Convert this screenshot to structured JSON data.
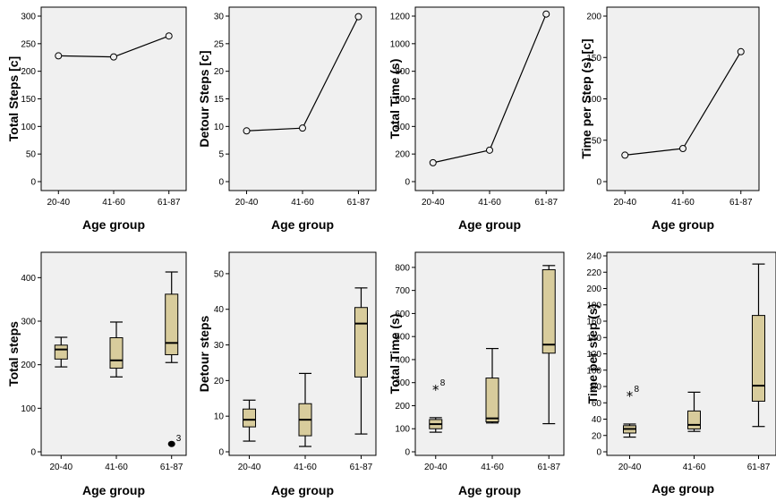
{
  "chart_data": [
    {
      "type": "line",
      "categories": [
        "20-40",
        "41-60",
        "61-87"
      ],
      "values": [
        228,
        226,
        264
      ],
      "ylim": [
        0,
        300
      ],
      "yticks": [
        0,
        50,
        100,
        150,
        200,
        250,
        300
      ],
      "ylabel": "Total Steps [c]",
      "xlabel": "Age group",
      "marker": "open-circle",
      "background": "#f0f0f0"
    },
    {
      "type": "line",
      "categories": [
        "20-40",
        "41-60",
        "61-87"
      ],
      "values": [
        9.2,
        9.7,
        29.9
      ],
      "ylim": [
        0,
        30
      ],
      "yticks": [
        0,
        5,
        10,
        15,
        20,
        25,
        30
      ],
      "ylabel": "Detour Steps [c]",
      "xlabel": "Age group",
      "marker": "open-circle",
      "background": "#f0f0f0"
    },
    {
      "type": "line",
      "categories": [
        "20-40",
        "41-60",
        "61-87"
      ],
      "values": [
        137,
        228,
        1215
      ],
      "ylim": [
        0,
        1200
      ],
      "yticks": [
        0,
        200,
        400,
        600,
        800,
        1000,
        1200
      ],
      "ylabel": "Total Time (s)",
      "xlabel": "Age group",
      "marker": "open-circle",
      "background": "#f0f0f0"
    },
    {
      "type": "line",
      "categories": [
        "20-40",
        "41-60",
        "61-87"
      ],
      "values": [
        32,
        40,
        157
      ],
      "ylim": [
        0,
        200
      ],
      "yticks": [
        0,
        50,
        100,
        150,
        200
      ],
      "ylabel": "Time per Step (s) [c]",
      "xlabel": "Age group",
      "marker": "open-circle",
      "background": "#f0f0f0"
    },
    {
      "type": "box",
      "categories": [
        "20-40",
        "41-60",
        "61-87"
      ],
      "boxes": [
        {
          "min": 195,
          "q1": 213,
          "median": 235,
          "q3": 245,
          "max": 263
        },
        {
          "min": 172,
          "q1": 192,
          "median": 210,
          "q3": 262,
          "max": 298
        },
        {
          "min": 205,
          "q1": 223,
          "median": 250,
          "q3": 362,
          "max": 413
        }
      ],
      "outliers": [
        {
          "category": "61-87",
          "value": 18,
          "label": "3",
          "shape": "dot"
        }
      ],
      "ylim": [
        0,
        450
      ],
      "yticks": [
        0,
        100,
        200,
        300,
        400
      ],
      "ylabel": "Total steps",
      "xlabel": "Age group",
      "box_color": "#d8cc9c",
      "background": "#f0f0f0"
    },
    {
      "type": "box",
      "categories": [
        "20-40",
        "41-60",
        "61-87"
      ],
      "boxes": [
        {
          "min": 3,
          "q1": 7,
          "median": 9,
          "q3": 12,
          "max": 14.5
        },
        {
          "min": 1.5,
          "q1": 4.5,
          "median": 9,
          "q3": 13.5,
          "max": 22
        },
        {
          "min": 5,
          "q1": 21,
          "median": 36,
          "q3": 40.5,
          "max": 46
        }
      ],
      "outliers": [],
      "ylim": [
        0,
        55
      ],
      "yticks": [
        0,
        10,
        20,
        30,
        40,
        50
      ],
      "ylabel": "Detour steps",
      "xlabel": "Age group",
      "box_color": "#d8cc9c",
      "background": "#f0f0f0"
    },
    {
      "type": "box",
      "categories": [
        "20-40",
        "41-60",
        "61-87"
      ],
      "boxes": [
        {
          "min": 85,
          "q1": 100,
          "median": 120,
          "q3": 140,
          "max": 148
        },
        {
          "min": 125,
          "q1": 130,
          "median": 145,
          "q3": 320,
          "max": 448
        },
        {
          "min": 122,
          "q1": 428,
          "median": 465,
          "q3": 790,
          "max": 808
        }
      ],
      "outliers": [
        {
          "category": "20-40",
          "value": 275,
          "label": "8",
          "shape": "star"
        }
      ],
      "ylim": [
        0,
        850
      ],
      "yticks": [
        0,
        100,
        200,
        300,
        400,
        500,
        600,
        700,
        800
      ],
      "ylabel": "Total Time (s)",
      "xlabel": "Age group",
      "box_color": "#d8cc9c",
      "background": "#f0f0f0"
    },
    {
      "type": "box",
      "categories": [
        "20-40",
        "41-60",
        "61-87"
      ],
      "boxes": [
        {
          "min": 18,
          "q1": 23,
          "median": 28,
          "q3": 32,
          "max": 34
        },
        {
          "min": 25,
          "q1": 28,
          "median": 33,
          "q3": 50,
          "max": 73
        },
        {
          "min": 31,
          "q1": 62,
          "median": 81,
          "q3": 167,
          "max": 230
        }
      ],
      "outliers": [
        {
          "category": "20-40",
          "value": 70,
          "label": "8",
          "shape": "star"
        }
      ],
      "ylim": [
        0,
        240
      ],
      "yticks": [
        0,
        20,
        40,
        60,
        80,
        100,
        120,
        140,
        160,
        180,
        200,
        220,
        240
      ],
      "ylabel": "Time per step (s)",
      "xlabel": "Age group",
      "box_color": "#d8cc9c",
      "background": "#f0f0f0"
    }
  ]
}
